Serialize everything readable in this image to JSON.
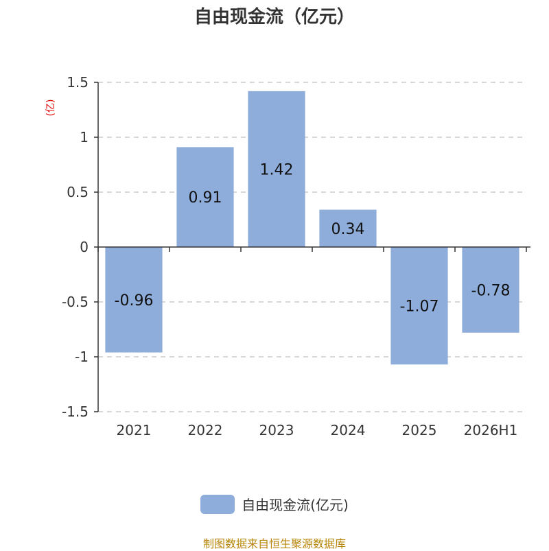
{
  "chart_data": {
    "type": "bar",
    "title": "自由现金流（亿元）",
    "ylabel": "(亿)",
    "categories": [
      "2021",
      "2022",
      "2023",
      "2024",
      "2025",
      "2026H1"
    ],
    "series": [
      {
        "name": "自由现金流(亿元)",
        "values": [
          -0.96,
          0.91,
          1.42,
          0.34,
          -1.07,
          -0.78
        ]
      }
    ],
    "data_labels": [
      "-0.96",
      "0.91",
      "1.42",
      "0.34",
      "-1.07",
      "-0.78"
    ],
    "ylim": [
      -1.5,
      1.5
    ],
    "yticks": [
      -1.5,
      -1,
      -0.5,
      0,
      0.5,
      1,
      1.5
    ],
    "ytick_labels": [
      "-1.5",
      "-1",
      "-0.5",
      "0",
      "0.5",
      "1",
      "1.5"
    ],
    "grid": true,
    "legend_position": "bottom-center"
  },
  "colors": {
    "bar": "#8eadda",
    "axis": "#333333",
    "grid": "#cccccc",
    "ylabel": "#e00000",
    "source": "#b8860b"
  },
  "footer": {
    "source": "制图数据来自恒生聚源数据库"
  }
}
